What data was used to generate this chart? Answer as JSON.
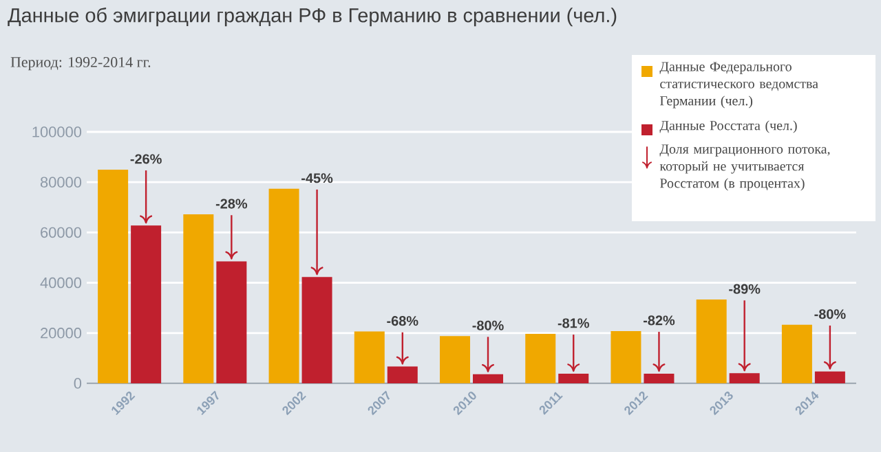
{
  "chart_data": {
    "type": "bar",
    "title": "Данные об эмиграции граждан РФ в Германию в сравнении (чел.)",
    "subtitle": "Период: 1992-2014 гг.",
    "categories": [
      "1992",
      "1997",
      "2002",
      "2007",
      "2010",
      "2011",
      "2012",
      "2013",
      "2014"
    ],
    "series": [
      {
        "name": "Данные Федерального статистического ведомства Германии (чел.)",
        "color": "#f0a800",
        "values": [
          85000,
          67200,
          77400,
          20600,
          18800,
          19700,
          20800,
          33300,
          23300
        ]
      },
      {
        "name": "Данные Росстата (чел.)",
        "color": "#c0202e",
        "values": [
          62800,
          48500,
          42300,
          6700,
          3600,
          3800,
          3800,
          4000,
          4700
        ]
      }
    ],
    "ylim": [
      0,
      100000
    ],
    "yticks": [
      0,
      20000,
      40000,
      60000,
      80000,
      100000
    ],
    "grid": "y",
    "legend": "top right",
    "annotations": [
      "Доля миграционного потока, который не учитывается Росстатом (в процентах)",
      {
        "text": "-26%",
        "x": "1992",
        "y": 85000
      },
      {
        "text": "-28%",
        "x": "1997",
        "y": 67200
      },
      {
        "text": "-45%",
        "x": "2002",
        "y": 77400
      },
      {
        "text": "-68%",
        "x": "2007",
        "y": 20600
      },
      {
        "text": "-80%",
        "x": "2010",
        "y": 18800
      },
      {
        "text": "-81%",
        "x": "2011",
        "y": 19700
      },
      {
        "text": "-82%",
        "x": "2012",
        "y": 20800
      },
      {
        "text": "-89%",
        "x": "2013",
        "y": 33300
      },
      {
        "text": "-80%",
        "x": "2014",
        "y": 23300
      }
    ]
  }
}
